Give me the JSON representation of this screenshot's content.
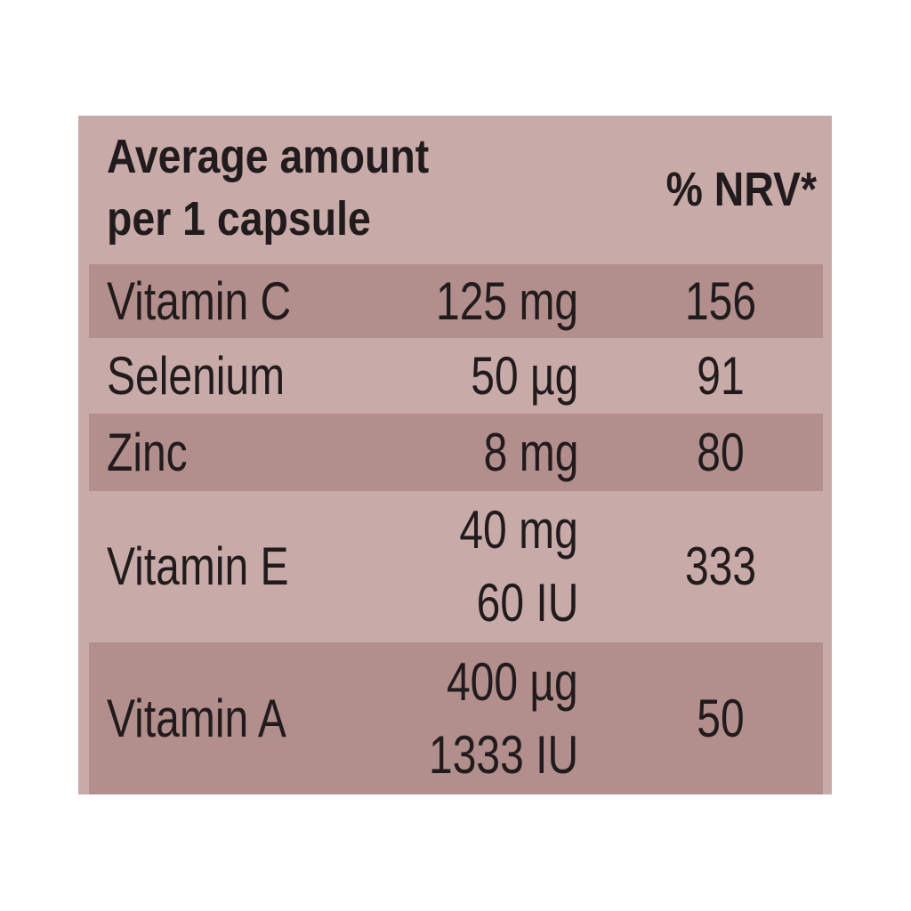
{
  "header": {
    "amount_heading": [
      "Average amount",
      "per 1 capsule"
    ],
    "nrv_heading": "% NRV*"
  },
  "rows": [
    {
      "name": "Vitamin C",
      "amounts": [
        "125 mg"
      ],
      "nrv": 156
    },
    {
      "name": "Selenium",
      "amounts": [
        "50 µg"
      ],
      "nrv": 91
    },
    {
      "name": "Zinc",
      "amounts": [
        "8 mg"
      ],
      "nrv": 80
    },
    {
      "name": "Vitamin E",
      "amounts": [
        "40 mg",
        "60 IU"
      ],
      "nrv": 333
    },
    {
      "name": "Vitamin A",
      "amounts": [
        "400 µg",
        "1333 IU"
      ],
      "nrv": 50
    }
  ]
}
